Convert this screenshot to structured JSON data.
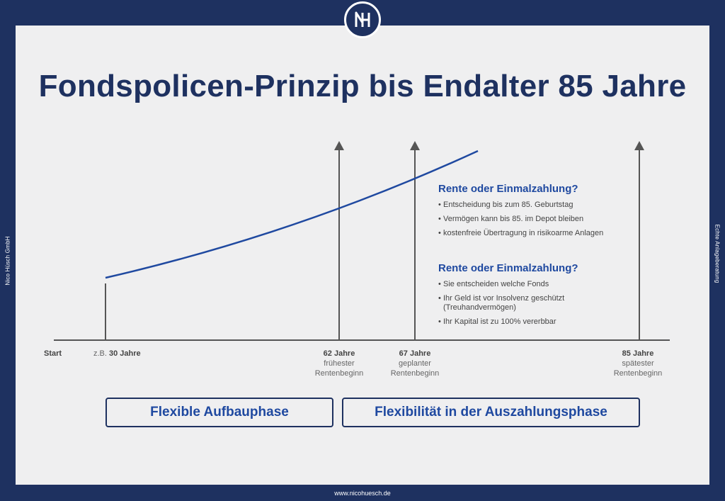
{
  "brand": {
    "logo_icon": "nh-monogram-logo",
    "company": "Nico Hüsch GmbH",
    "tagline": "Echte Anlageberatung",
    "url": "www.nicohuesch.de"
  },
  "title": "Fondspolicen-Prinzip bis Endalter 85 Jahre",
  "timeline": {
    "start": "Start",
    "age30_prefix": "z.B.",
    "age30": "30 Jahre",
    "age62": "62 Jahre",
    "age62_sub1": "frühester",
    "age62_sub2": "Rentenbeginn",
    "age67": "67 Jahre",
    "age67_sub1": "geplanter",
    "age67_sub2": "Rentenbeginn",
    "age85": "85 Jahre",
    "age85_sub1": "spätester",
    "age85_sub2": "Rentenbeginn"
  },
  "info1": {
    "heading": "Rente oder Einmalzahlung?",
    "items": [
      "Entscheidung bis zum 85. Geburtstag",
      "Vermögen kann bis 85. im Depot bleiben",
      "kostenfreie Übertragung in risikoarme Anlagen"
    ]
  },
  "info2": {
    "heading": "Rente oder Einmalzahlung?",
    "items": [
      "Sie entscheiden welche Fonds",
      "Ihr Geld ist vor Insolvenz geschützt (Treuhandvermögen)",
      "Ihr Kapital ist zu 100% vererbbar"
    ]
  },
  "phases": {
    "build": "Flexible Aufbauphase",
    "payout": "Flexibilität in der Auszahlungsphase"
  },
  "colors": {
    "navy": "#1e3160",
    "accent_blue": "#1f49a0",
    "axis_gray": "#555555"
  }
}
